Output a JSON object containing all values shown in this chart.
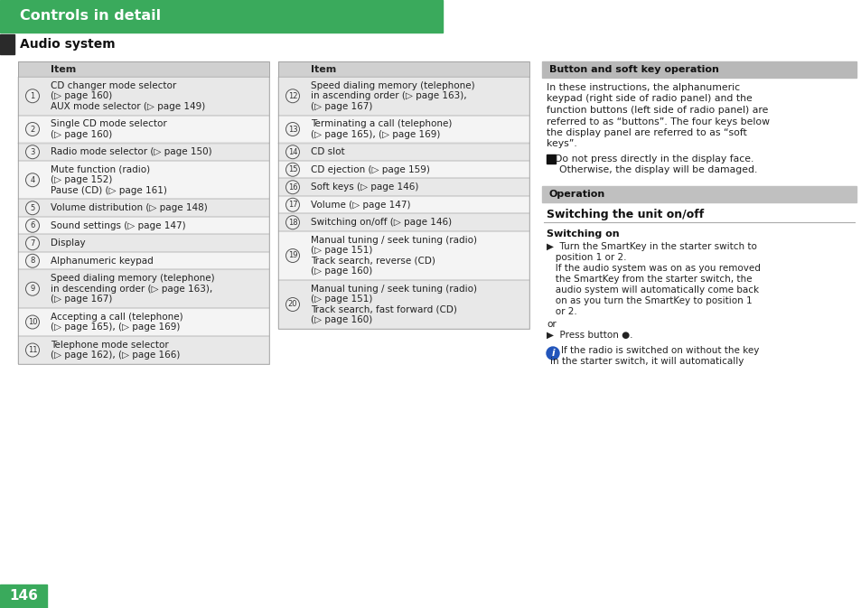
{
  "title": "Controls in detail",
  "title_bg": "#3aaa5c",
  "title_text_color": "#ffffff",
  "section_title": "Audio system",
  "black_bar_color": "#2a2a2a",
  "table_header_bg": "#d0d0d0",
  "table_row_even_bg": "#e8e8e8",
  "table_row_odd_bg": "#f4f4f4",
  "sidebar_header1_bg": "#b8b8b8",
  "sidebar_header2_bg": "#c0c0c0",
  "page_bg": "#ffffff",
  "page_number": "146",
  "page_number_bg": "#3aaa5c",
  "page_number_color": "#ffffff",
  "text_color": "#222222",
  "left_table": [
    {
      "num": "1",
      "text": "CD changer mode selector\n(▷ page 160)\nAUX mode selector (▷ page 149)",
      "lines": 3
    },
    {
      "num": "2",
      "text": "Single CD mode selector\n(▷ page 160)",
      "lines": 2
    },
    {
      "num": "3",
      "text": "Radio mode selector (▷ page 150)",
      "lines": 1
    },
    {
      "num": "4",
      "text": "Mute function (radio)\n(▷ page 152)\nPause (CD) (▷ page 161)",
      "lines": 3
    },
    {
      "num": "5",
      "text": "Volume distribution (▷ page 148)",
      "lines": 1
    },
    {
      "num": "6",
      "text": "Sound settings (▷ page 147)",
      "lines": 1
    },
    {
      "num": "7",
      "text": "Display",
      "lines": 1
    },
    {
      "num": "8",
      "text": "Alphanumeric keypad",
      "lines": 1
    },
    {
      "num": "9",
      "text": "Speed dialing memory (telephone)\nin descending order (▷ page 163),\n(▷ page 167)",
      "lines": 3
    },
    {
      "num": "10",
      "text": "Accepting a call (telephone)\n(▷ page 165), (▷ page 169)",
      "lines": 2
    },
    {
      "num": "11",
      "text": "Telephone mode selector\n(▷ page 162), (▷ page 166)",
      "lines": 2
    }
  ],
  "right_table": [
    {
      "num": "12",
      "text": "Speed dialing memory (telephone)\nin ascending order (▷ page 163),\n(▷ page 167)",
      "lines": 3
    },
    {
      "num": "13",
      "text": "Terminating a call (telephone)\n(▷ page 165), (▷ page 169)",
      "lines": 2
    },
    {
      "num": "14",
      "text": "CD slot",
      "lines": 1
    },
    {
      "num": "15",
      "text": "CD ejection (▷ page 159)",
      "lines": 1
    },
    {
      "num": "16",
      "text": "Soft keys (▷ page 146)",
      "lines": 1
    },
    {
      "num": "17",
      "text": "Volume (▷ page 147)",
      "lines": 1
    },
    {
      "num": "18",
      "text": "Switching on/off (▷ page 146)",
      "lines": 1
    },
    {
      "num": "19",
      "text": "Manual tuning / seek tuning (radio)\n(▷ page 151)\nTrack search, reverse (CD)\n(▷ page 160)",
      "lines": 4
    },
    {
      "num": "20",
      "text": "Manual tuning / seek tuning (radio)\n(▷ page 151)\nTrack search, fast forward (CD)\n(▷ page 160)",
      "lines": 4
    }
  ]
}
